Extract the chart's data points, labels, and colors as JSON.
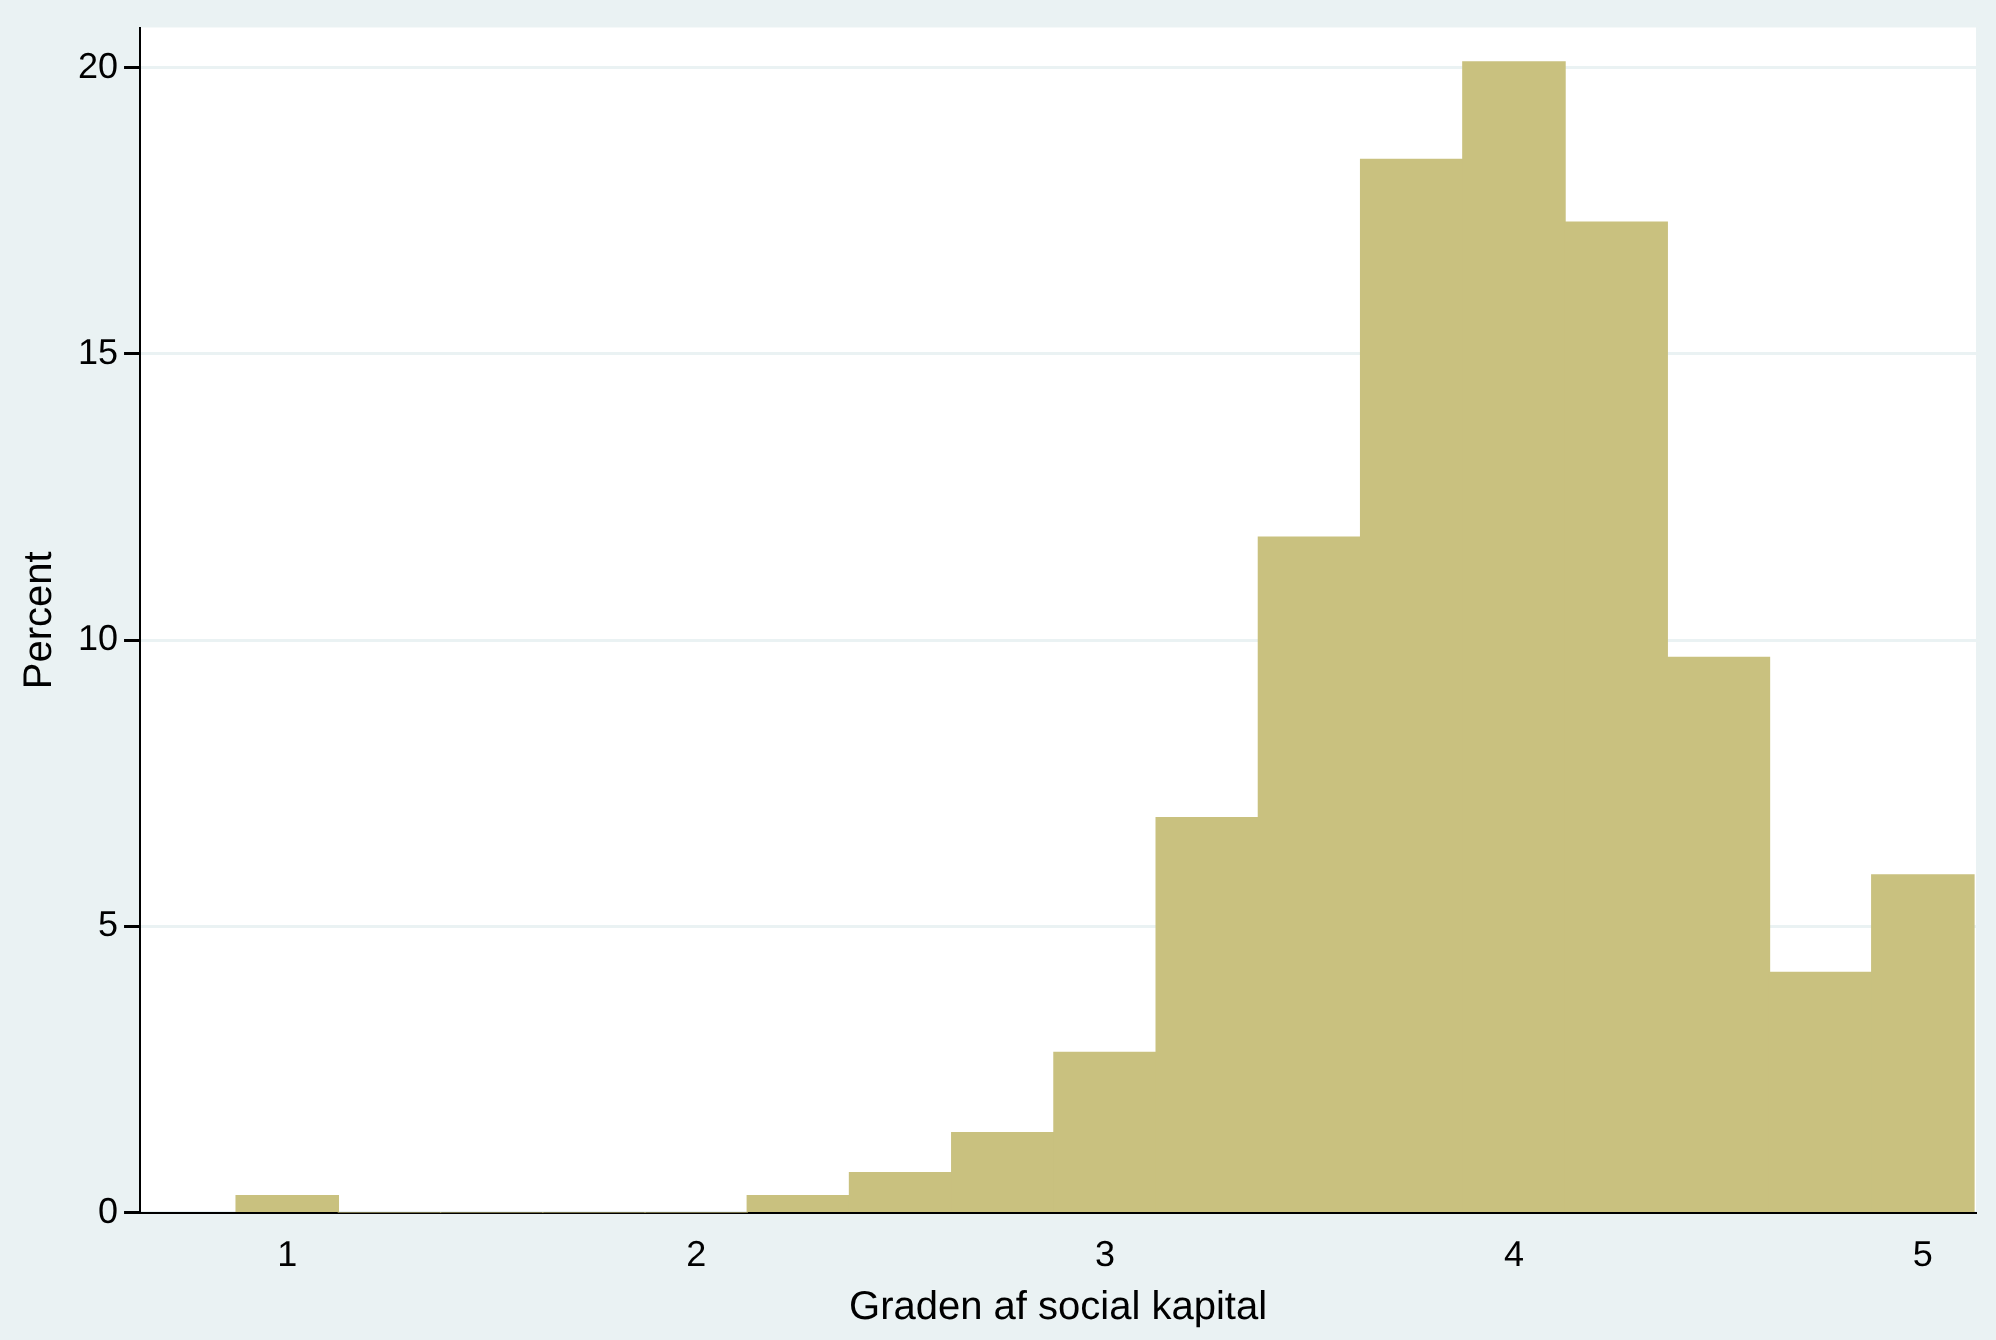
{
  "chart_data": {
    "type": "histogram",
    "xlabel": "Graden af social kapital",
    "ylabel": "Percent",
    "bins": [
      0.875,
      1.125,
      1.375,
      1.625,
      1.875,
      2.125,
      2.375,
      2.625,
      2.875,
      3.125,
      3.375,
      3.625,
      3.875,
      4.125,
      4.375,
      4.625,
      4.875,
      5.125
    ],
    "values": [
      0.3,
      0,
      0,
      0,
      0,
      0.3,
      0.7,
      1.4,
      2.8,
      6.9,
      11.8,
      18.4,
      20.1,
      17.3,
      9.7,
      4.2,
      5.9
    ],
    "color": "#c9c17f",
    "xlim": [
      0.64,
      5.13
    ],
    "xticks": [
      1,
      2,
      3,
      4,
      5
    ],
    "ylim": [
      0,
      20.7
    ],
    "yticks": [
      0,
      5,
      10,
      15,
      20
    ],
    "grid": "y",
    "legend": false
  }
}
